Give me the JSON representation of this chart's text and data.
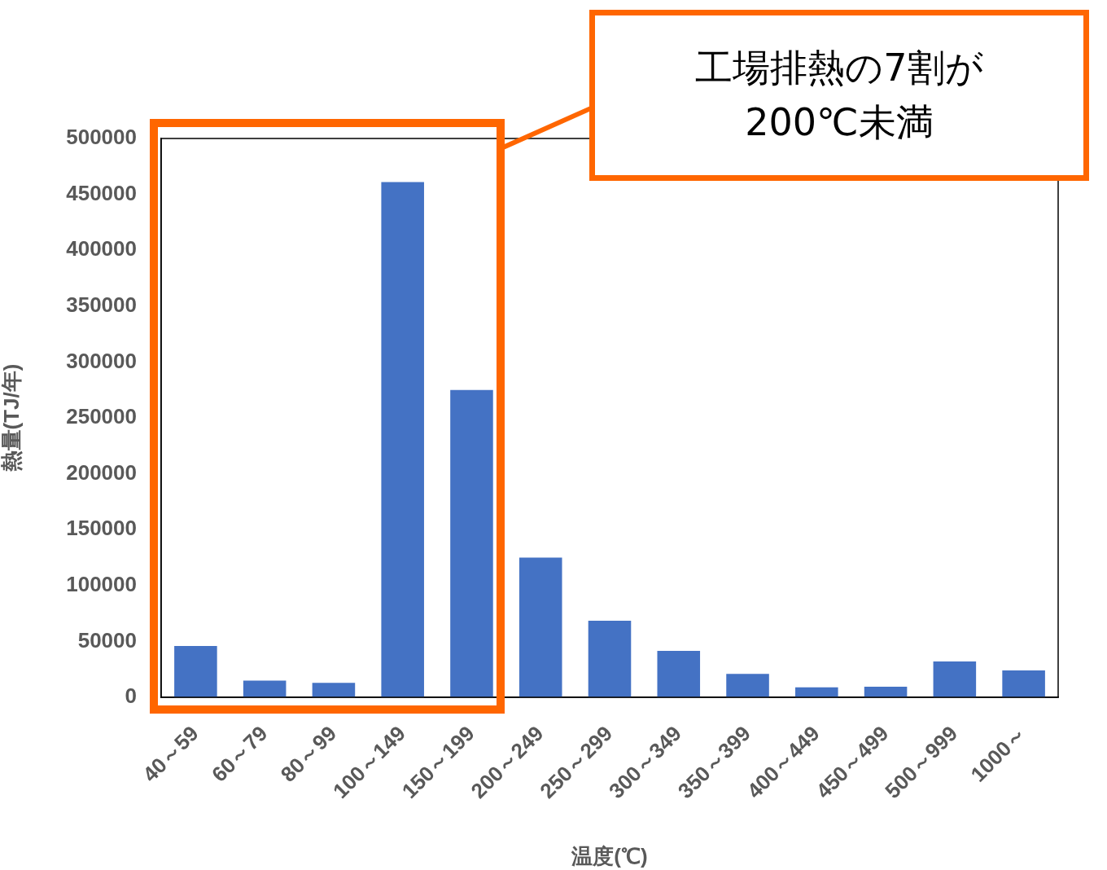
{
  "chart_data": {
    "type": "bar",
    "xlabel": "温度(℃)",
    "ylabel": "熱量(TJ/年)",
    "categories": [
      "40～59",
      "60～79",
      "80～99",
      "100～149",
      "150～199",
      "200～249",
      "250～299",
      "300～349",
      "350～399",
      "400～449",
      "450～499",
      "500～999",
      "1000～"
    ],
    "values": [
      46000,
      15000,
      13000,
      461000,
      275000,
      125000,
      68500,
      41500,
      21000,
      9000,
      9500,
      32000,
      24000
    ],
    "color": "#4472c4",
    "ylim": [
      0,
      500000
    ],
    "yticks": [
      0,
      50000,
      100000,
      150000,
      200000,
      250000,
      300000,
      350000,
      400000,
      450000,
      500000
    ],
    "grid": false,
    "legend": false,
    "annotations": [
      "工場排熱の7割が200℃未満"
    ]
  }
}
